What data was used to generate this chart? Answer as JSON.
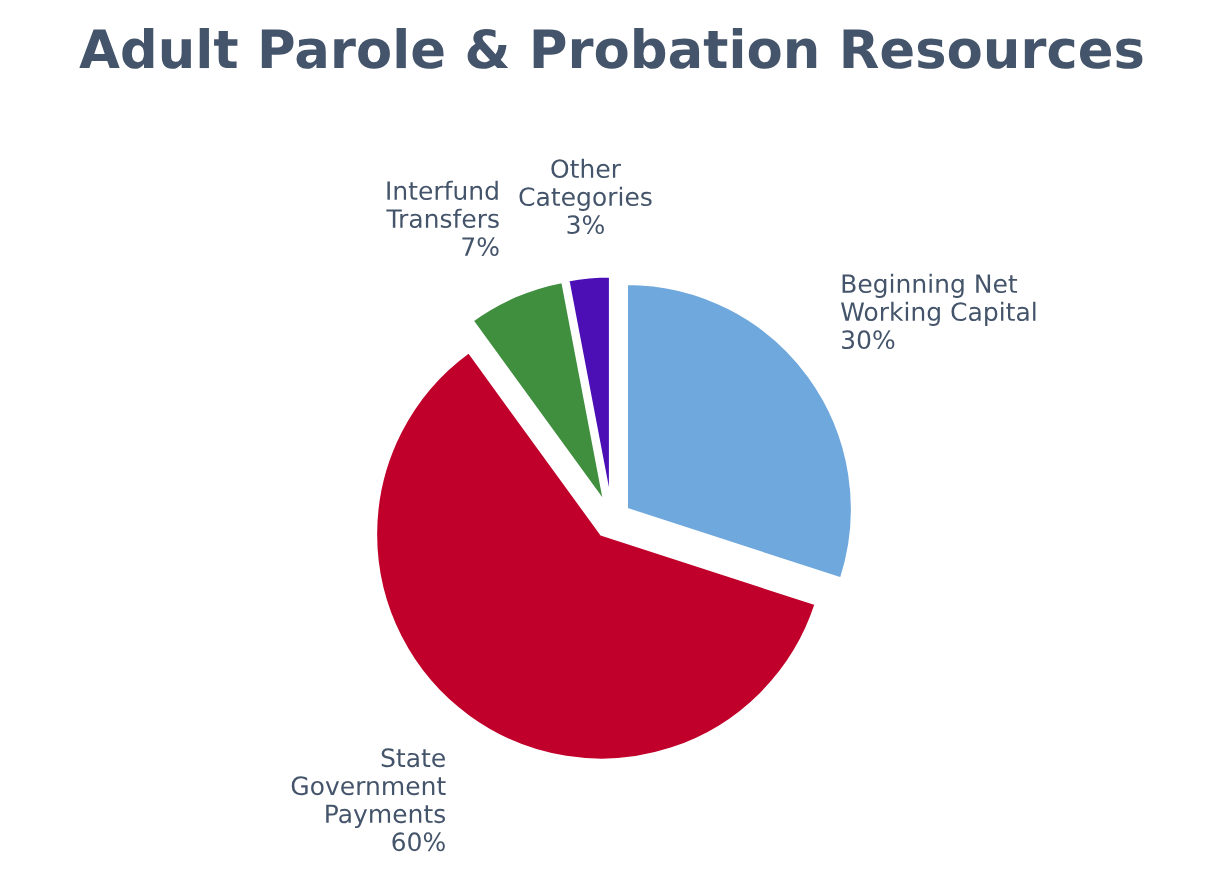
{
  "chart_data": {
    "type": "pie",
    "title": "Adult Parole & Probation Resources",
    "categories": [
      "Beginning Net\nWorking Capital",
      "State\nGovernment\nPayments",
      "Interfund\nTransfers",
      "Other\nCategories"
    ],
    "values": [
      30,
      60,
      7,
      3
    ],
    "colors": [
      "#6fa8dc",
      "#c0002a",
      "#3f8f3f",
      "#4b0fb5"
    ],
    "value_labels": [
      "30%",
      "60%",
      "7%",
      "3%"
    ],
    "legend": false
  }
}
